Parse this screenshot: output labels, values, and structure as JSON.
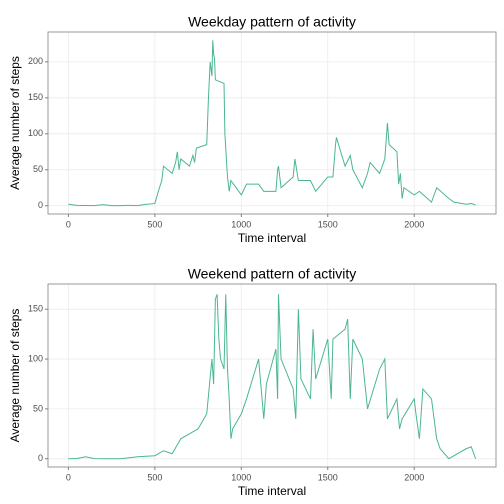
{
  "chart_data": [
    {
      "type": "line",
      "title": "Weekday pattern of activity",
      "x_label": "Time interval",
      "y_label": "Average number of steps",
      "x": [
        0,
        50,
        100,
        150,
        200,
        250,
        300,
        350,
        400,
        450,
        500,
        520,
        540,
        550,
        600,
        620,
        630,
        640,
        650,
        700,
        720,
        730,
        740,
        800,
        810,
        820,
        830,
        835,
        840,
        845,
        850,
        900,
        905,
        915,
        920,
        930,
        940,
        1000,
        1030,
        1100,
        1130,
        1200,
        1210,
        1215,
        1230,
        1300,
        1310,
        1330,
        1400,
        1430,
        1500,
        1530,
        1545,
        1550,
        1600,
        1630,
        1645,
        1700,
        1730,
        1745,
        1800,
        1830,
        1845,
        1855,
        1900,
        1910,
        1920,
        1930,
        1940,
        2000,
        2030,
        2100,
        2130,
        2200,
        2230,
        2300,
        2330,
        2355
      ],
      "series": [
        {
          "name": "steps",
          "color": "#4bb693",
          "values": [
            2,
            0.5,
            0.3,
            0.1,
            1.5,
            0.2,
            0.1,
            0.5,
            0.1,
            2,
            3,
            20,
            35,
            55,
            45,
            60,
            75,
            50,
            65,
            55,
            70,
            60,
            80,
            85,
            150,
            200,
            180,
            230,
            210,
            205,
            175,
            170,
            100,
            60,
            40,
            20,
            35,
            15,
            30,
            30,
            20,
            20,
            50,
            55,
            25,
            40,
            65,
            35,
            35,
            20,
            40,
            40,
            85,
            95,
            55,
            70,
            50,
            25,
            45,
            60,
            45,
            65,
            115,
            85,
            75,
            30,
            45,
            10,
            25,
            15,
            20,
            5,
            25,
            10,
            5,
            2,
            3,
            1
          ]
        }
      ],
      "xlim": [
        -118,
        2473
      ],
      "xticks": [
        0,
        500,
        1000,
        1500,
        2000
      ],
      "ylim": [
        -11.5,
        241.5
      ],
      "yticks": [
        0,
        50,
        100,
        150,
        200
      ],
      "grid": true
    },
    {
      "type": "line",
      "title": "Weekend pattern of activity",
      "x_label": "Time interval",
      "y_label": "Average number of steps",
      "x": [
        0,
        50,
        100,
        150,
        200,
        300,
        400,
        500,
        550,
        600,
        650,
        700,
        750,
        800,
        830,
        840,
        850,
        860,
        870,
        880,
        900,
        910,
        920,
        930,
        940,
        950,
        1000,
        1030,
        1100,
        1130,
        1145,
        1200,
        1210,
        1215,
        1230,
        1300,
        1315,
        1330,
        1345,
        1400,
        1415,
        1430,
        1500,
        1520,
        1530,
        1600,
        1615,
        1630,
        1645,
        1700,
        1730,
        1800,
        1830,
        1845,
        1900,
        1915,
        1930,
        2000,
        2010,
        2030,
        2050,
        2100,
        2130,
        2150,
        2200,
        2300,
        2330,
        2355
      ],
      "series": [
        {
          "name": "steps",
          "color": "#4bb693",
          "values": [
            0,
            0.2,
            2,
            0.1,
            0,
            0,
            2,
            3,
            8,
            5,
            20,
            25,
            30,
            45,
            100,
            75,
            160,
            165,
            120,
            100,
            90,
            165,
            90,
            60,
            20,
            30,
            45,
            60,
            100,
            40,
            75,
            110,
            60,
            165,
            100,
            70,
            40,
            150,
            80,
            60,
            130,
            80,
            120,
            60,
            120,
            130,
            140,
            60,
            120,
            100,
            50,
            90,
            100,
            40,
            60,
            30,
            40,
            60,
            45,
            20,
            70,
            60,
            20,
            10,
            0,
            10,
            12,
            0
          ]
        }
      ],
      "xlim": [
        -118,
        2473
      ],
      "xticks": [
        0,
        500,
        1000,
        1500,
        2000
      ],
      "ylim": [
        -8.3,
        175.3
      ],
      "yticks": [
        0,
        50,
        100,
        150
      ],
      "grid": true
    }
  ]
}
